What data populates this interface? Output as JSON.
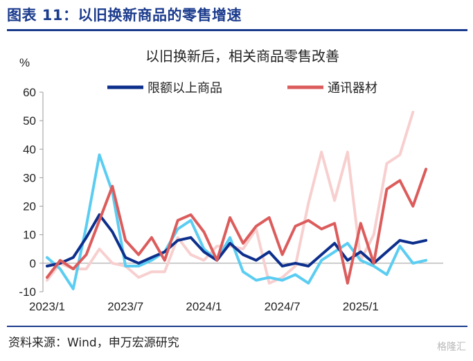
{
  "figure": {
    "title": "图表 11：以旧换新商品的零售增速",
    "source": "资料来源：Wind，申万宏源研究",
    "watermark": "格隆汇"
  },
  "chart_data": {
    "type": "line",
    "title": "以旧换新后，相关商品零售改善",
    "ylabel": "%",
    "ylim": [
      -10,
      60
    ],
    "yticks": [
      -10,
      0,
      10,
      20,
      30,
      40,
      50,
      60
    ],
    "x_ticks": [
      "2023/1",
      "2023/7",
      "2024/1",
      "2024/7",
      "2025/1"
    ],
    "x_tick_index": [
      0,
      6,
      12,
      18,
      24
    ],
    "grid": false,
    "legend_position": "top",
    "x": [
      "2023/1",
      "2023/2",
      "2023/3",
      "2023/4",
      "2023/5",
      "2023/6",
      "2023/7",
      "2023/8",
      "2023/9",
      "2023/10",
      "2023/11",
      "2023/12",
      "2024/1",
      "2024/2",
      "2024/3",
      "2024/4",
      "2024/5",
      "2024/6",
      "2024/7",
      "2024/8",
      "2024/9",
      "2024/10",
      "2024/11",
      "2024/12",
      "2025/1",
      "2025/2",
      "2025/3",
      "2025/4",
      "2025/5",
      "2025/6",
      "2025/7"
    ],
    "series": [
      {
        "name": "",
        "color": "#f8cfcf",
        "legend": false,
        "values": [
          -6,
          0,
          -2,
          -2,
          5,
          0,
          -1,
          -5,
          -3,
          -3,
          9,
          3,
          1,
          6,
          6,
          5,
          12,
          -7,
          -5,
          -1,
          21,
          39,
          22,
          39,
          1,
          10,
          35,
          38,
          53,
          null,
          null
        ]
      },
      {
        "name": "",
        "color": "#5bcdf2",
        "legend": false,
        "values": [
          2,
          -2,
          -9,
          13,
          38,
          25,
          -1,
          -1,
          1,
          4,
          12,
          15,
          5,
          1,
          9,
          -3,
          -6,
          -5,
          -6,
          -4,
          -7,
          1,
          4,
          7,
          1,
          -1,
          -4,
          6,
          0,
          1,
          null
        ]
      },
      {
        "name": "限额以上商品",
        "color": "#0d2f8c",
        "legend": true,
        "values": [
          -1,
          0,
          2,
          9,
          17,
          11,
          2,
          0,
          2,
          4,
          8,
          9,
          4,
          1,
          7,
          3,
          1,
          4,
          -1,
          0,
          -1,
          3,
          7,
          1,
          4,
          0,
          4,
          8,
          7,
          8,
          null
        ]
      },
      {
        "name": "通讯器材",
        "color": "#dc5c5c",
        "legend": true,
        "values": [
          -5,
          1,
          -2,
          3,
          15,
          27,
          8,
          3,
          9,
          1,
          15,
          17,
          11,
          1,
          16,
          7,
          13,
          16,
          3,
          13,
          15,
          12,
          14,
          -7,
          14,
          0,
          26,
          29,
          20,
          33,
          null
        ]
      }
    ]
  }
}
